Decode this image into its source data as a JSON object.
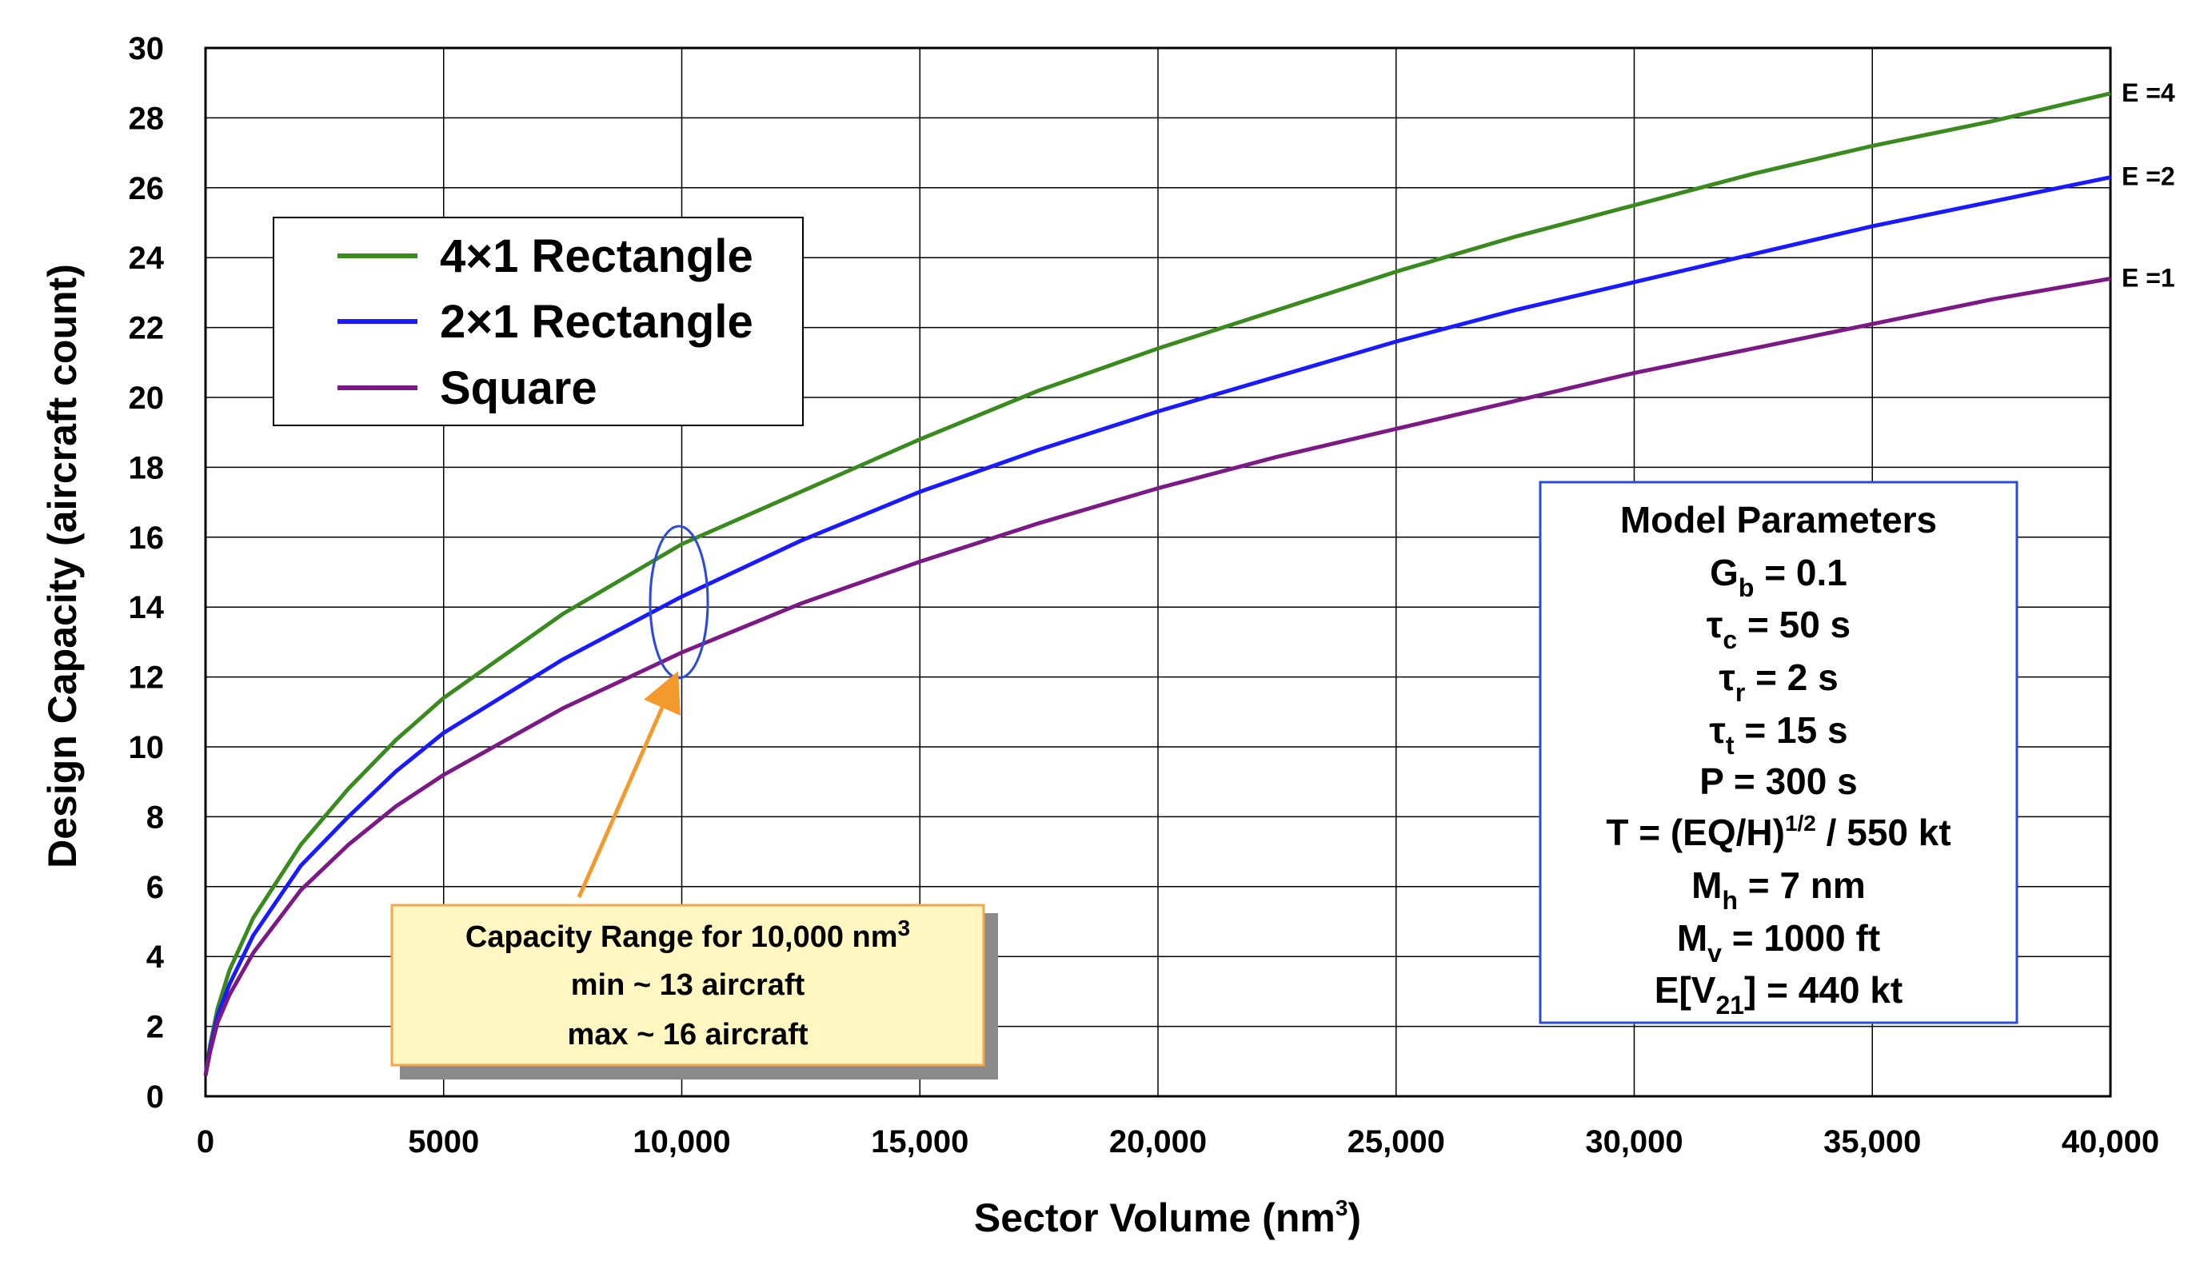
{
  "chart_data": {
    "type": "line",
    "xlabel": "Sector Volume (nm",
    "xlabel_sup": "3",
    "xlabel_end": ")",
    "ylabel": "Design Capacity (aircraft count)",
    "xlim": [
      0,
      40000
    ],
    "ylim": [
      0,
      30
    ],
    "grid": true,
    "x_ticks": [
      {
        "value": 0,
        "label": "0"
      },
      {
        "value": 5000,
        "label": "5000"
      },
      {
        "value": 10000,
        "label": "10,000"
      },
      {
        "value": 15000,
        "label": "15,000"
      },
      {
        "value": 20000,
        "label": "20,000"
      },
      {
        "value": 25000,
        "label": "25,000"
      },
      {
        "value": 30000,
        "label": "30,000"
      },
      {
        "value": 35000,
        "label": "35,000"
      },
      {
        "value": 40000,
        "label": "40,000"
      }
    ],
    "y_ticks": [
      {
        "value": 0,
        "label": "0"
      },
      {
        "value": 2,
        "label": "2"
      },
      {
        "value": 4,
        "label": "4"
      },
      {
        "value": 6,
        "label": "6"
      },
      {
        "value": 8,
        "label": "8"
      },
      {
        "value": 10,
        "label": "10"
      },
      {
        "value": 12,
        "label": "12"
      },
      {
        "value": 14,
        "label": "14"
      },
      {
        "value": 16,
        "label": "16"
      },
      {
        "value": 18,
        "label": "18"
      },
      {
        "value": 20,
        "label": "20"
      },
      {
        "value": 22,
        "label": "22"
      },
      {
        "value": 24,
        "label": "24"
      },
      {
        "value": 26,
        "label": "26"
      },
      {
        "value": 28,
        "label": "28"
      },
      {
        "value": 30,
        "label": "30"
      }
    ],
    "x": [
      0,
      100,
      250,
      500,
      1000,
      2000,
      3000,
      4000,
      5000,
      7500,
      10000,
      12500,
      15000,
      17500,
      20000,
      22500,
      25000,
      27500,
      30000,
      32500,
      35000,
      37500,
      40000
    ],
    "series": [
      {
        "name": "4×1 Rectangle",
        "color": "#3a8a1f",
        "end_label": "E =4",
        "values": [
          0.6,
          1.5,
          2.5,
          3.6,
          5.1,
          7.2,
          8.8,
          10.2,
          11.4,
          13.8,
          15.8,
          17.3,
          18.8,
          20.2,
          21.4,
          22.5,
          23.6,
          24.6,
          25.5,
          26.4,
          27.2,
          27.9,
          28.7
        ]
      },
      {
        "name": "2×1 Rectangle",
        "color": "#1a1aff",
        "end_label": "E =2",
        "values": [
          0.6,
          1.4,
          2.3,
          3.2,
          4.6,
          6.6,
          8.0,
          9.3,
          10.4,
          12.5,
          14.3,
          15.9,
          17.3,
          18.5,
          19.6,
          20.6,
          21.6,
          22.5,
          23.3,
          24.1,
          24.9,
          25.6,
          26.3
        ]
      },
      {
        "name": "Square",
        "color": "#7b1a84",
        "end_label": "E =1",
        "values": [
          0.6,
          1.3,
          2.1,
          2.9,
          4.1,
          5.9,
          7.2,
          8.3,
          9.2,
          11.1,
          12.7,
          14.1,
          15.3,
          16.4,
          17.4,
          18.3,
          19.1,
          19.9,
          20.7,
          21.4,
          22.1,
          22.8,
          23.4
        ]
      }
    ],
    "ellipse_label": "10,000 nm3 capacity range highlight"
  },
  "legend": {
    "items": [
      {
        "label": "4×1 Rectangle",
        "color": "#3a8a1f"
      },
      {
        "label": "2×1 Rectangle",
        "color": "#1a1aff"
      },
      {
        "label": "Square",
        "color": "#7b1a84"
      }
    ]
  },
  "params": {
    "title": "Model Parameters",
    "gb": {
      "main": "G",
      "sub": "b",
      "rest": " = 0.1"
    },
    "tc": {
      "main": "τ",
      "sub": "c",
      "rest": " = 50 s"
    },
    "tr": {
      "main": "τ",
      "sub": "r",
      "rest": " =  2 s"
    },
    "tt": {
      "main": "τ",
      "sub": "t",
      "rest": " = 15 s"
    },
    "p": "P = 300 s",
    "t": {
      "main": "T = (EQ/H)",
      "sup": "1/2",
      "rest": " / 550 kt"
    },
    "mh": {
      "main": "M",
      "sub": "h",
      "rest": " = 7 nm"
    },
    "mv": {
      "main": "M",
      "sub": "v",
      "rest": " = 1000 ft"
    },
    "ev": {
      "main": "E[V",
      "sub": "21",
      "rest": "] = 440 kt"
    }
  },
  "callout": {
    "line1": "Capacity Range for 10,000 nm",
    "line1_sup": "3",
    "line2": "min ~ 13 aircraft",
    "line3": "max ~ 16 aircraft"
  }
}
